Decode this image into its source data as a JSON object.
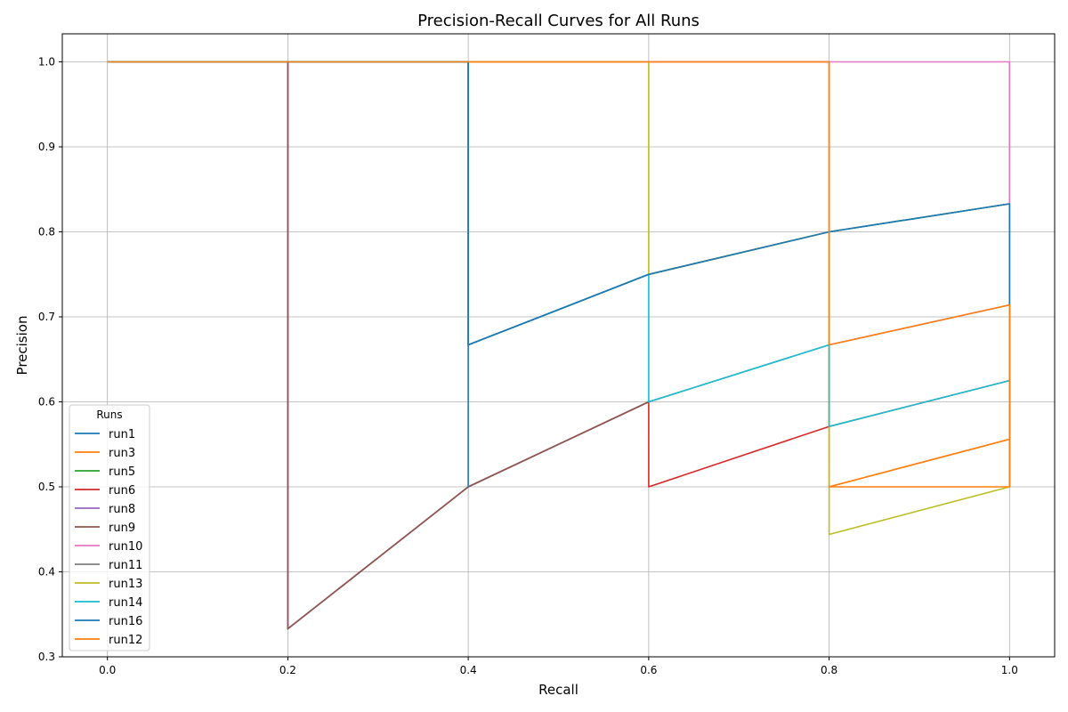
{
  "chart_data": {
    "type": "line",
    "title": "Precision-Recall Curves for All Runs",
    "xlabel": "Recall",
    "ylabel": "Precision",
    "xlim": [
      -0.05,
      1.05
    ],
    "ylim": [
      0.3,
      1.033
    ],
    "x_ticks": [
      "0.0",
      "0.2",
      "0.4",
      "0.6",
      "0.8",
      "1.0"
    ],
    "y_ticks": [
      "0.3",
      "0.4",
      "0.5",
      "0.6",
      "0.7",
      "0.8",
      "0.9",
      "1.0"
    ],
    "grid": true,
    "legend_title": "Runs",
    "legend_position": "lower-left",
    "series": [
      {
        "name": "run1",
        "color": "#1f77b4",
        "points": [
          [
            0,
            1
          ],
          [
            0.4,
            1
          ],
          [
            0.4,
            0.667
          ],
          [
            0.6,
            0.75
          ],
          [
            0.8,
            0.8
          ],
          [
            1.0,
            0.833
          ],
          [
            1.0,
            0.5
          ]
        ]
      },
      {
        "name": "run3",
        "color": "#ff7f0e",
        "points": [
          [
            0,
            1
          ],
          [
            0.8,
            1
          ],
          [
            0.8,
            0.5
          ],
          [
            1.0,
            0.556
          ],
          [
            1.0,
            0.5
          ]
        ]
      },
      {
        "name": "run5",
        "color": "#2ca02c",
        "points": [
          [
            0,
            1
          ],
          [
            0.4,
            1
          ],
          [
            0.4,
            0.667
          ],
          [
            0.6,
            0.75
          ],
          [
            0.8,
            0.8
          ],
          [
            1.0,
            0.833
          ],
          [
            1.0,
            0.556
          ]
        ]
      },
      {
        "name": "run6",
        "color": "#d62728",
        "points": [
          [
            0,
            1
          ],
          [
            0.2,
            1
          ],
          [
            0.2,
            0.333
          ],
          [
            0.4,
            0.5
          ],
          [
            0.6,
            0.6
          ],
          [
            0.6,
            0.5
          ],
          [
            0.8,
            0.571
          ],
          [
            1.0,
            0.625
          ]
        ]
      },
      {
        "name": "run8",
        "color": "#9467bd",
        "points": [
          [
            0,
            1
          ],
          [
            0.2,
            1
          ],
          [
            0.2,
            0.333
          ],
          [
            0.4,
            0.5
          ],
          [
            0.6,
            0.6
          ],
          [
            0.8,
            0.667
          ],
          [
            1.0,
            0.714
          ]
        ]
      },
      {
        "name": "run9",
        "color": "#8c564b",
        "points": [
          [
            0,
            1
          ],
          [
            0.2,
            1
          ],
          [
            0.2,
            0.333
          ],
          [
            0.4,
            0.5
          ],
          [
            0.6,
            0.6
          ]
        ]
      },
      {
        "name": "run10",
        "color": "#e377c2",
        "points": [
          [
            0,
            1
          ],
          [
            1.0,
            1
          ],
          [
            1.0,
            0.833
          ]
        ]
      },
      {
        "name": "run11",
        "color": "#7f7f7f",
        "points": [
          [
            0,
            1
          ],
          [
            0.4,
            1
          ],
          [
            0.4,
            0.667
          ],
          [
            0.6,
            0.75
          ]
        ]
      },
      {
        "name": "run13",
        "color": "#bcbd22",
        "points": [
          [
            0,
            1
          ],
          [
            0.6,
            1
          ],
          [
            0.6,
            0.75
          ],
          [
            0.8,
            0.8
          ],
          [
            0.8,
            0.444
          ],
          [
            1.0,
            0.5
          ],
          [
            1.0,
            0.556
          ]
        ]
      },
      {
        "name": "run14",
        "color": "#17becf",
        "points": [
          [
            0,
            1
          ],
          [
            0.4,
            1
          ],
          [
            0.4,
            0.667
          ],
          [
            0.6,
            0.75
          ],
          [
            0.6,
            0.6
          ],
          [
            0.8,
            0.667
          ],
          [
            0.8,
            0.571
          ],
          [
            1.0,
            0.625
          ],
          [
            1.0,
            0.556
          ]
        ]
      },
      {
        "name": "run16",
        "color": "#1f77b4",
        "points": [
          [
            0,
            1
          ],
          [
            0.4,
            1
          ],
          [
            0.4,
            0.5
          ],
          [
            0.4,
            0.667
          ],
          [
            0.6,
            0.75
          ],
          [
            0.8,
            0.8
          ],
          [
            1.0,
            0.833
          ],
          [
            1.0,
            0.5
          ]
        ]
      },
      {
        "name": "run12",
        "color": "#ff7f0e",
        "points": [
          [
            0,
            1
          ],
          [
            0.8,
            1
          ],
          [
            0.8,
            0.667
          ],
          [
            1.0,
            0.714
          ],
          [
            1.0,
            0.5
          ],
          [
            0.8,
            0.5
          ],
          [
            1.0,
            0.556
          ]
        ]
      }
    ]
  }
}
